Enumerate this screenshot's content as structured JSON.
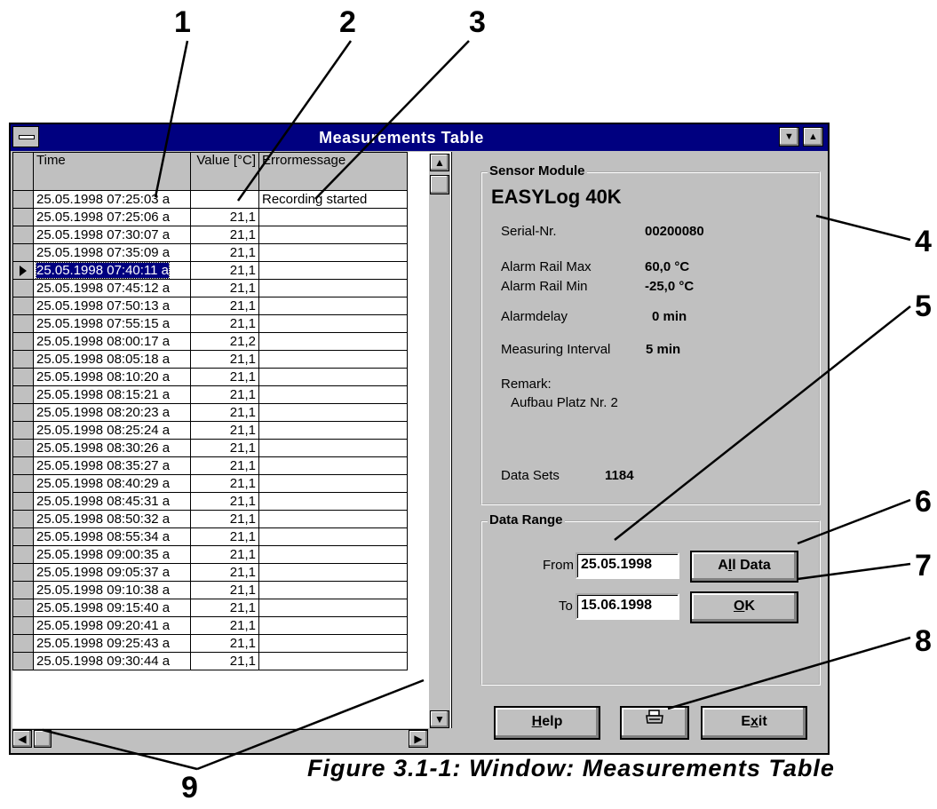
{
  "callouts": [
    "1",
    "2",
    "3",
    "4",
    "5",
    "6",
    "7",
    "8",
    "9"
  ],
  "caption": "Figure 3.1-1: Window: Measurements Table",
  "window": {
    "title": "Measurements Table"
  },
  "table": {
    "headers": {
      "time": "Time",
      "value": "Value [°C]",
      "error": "Errormessage"
    },
    "selected_row": 4,
    "rows": [
      {
        "time": "25.05.1998 07:25:03 a",
        "value": "",
        "error": "Recording started"
      },
      {
        "time": "25.05.1998 07:25:06 a",
        "value": "21,1",
        "error": ""
      },
      {
        "time": "25.05.1998 07:30:07 a",
        "value": "21,1",
        "error": ""
      },
      {
        "time": "25.05.1998 07:35:09 a",
        "value": "21,1",
        "error": ""
      },
      {
        "time": "25.05.1998 07:40:11 a",
        "value": "21,1",
        "error": ""
      },
      {
        "time": "25.05.1998 07:45:12 a",
        "value": "21,1",
        "error": ""
      },
      {
        "time": "25.05.1998 07:50:13 a",
        "value": "21,1",
        "error": ""
      },
      {
        "time": "25.05.1998 07:55:15 a",
        "value": "21,1",
        "error": ""
      },
      {
        "time": "25.05.1998 08:00:17 a",
        "value": "21,2",
        "error": ""
      },
      {
        "time": "25.05.1998 08:05:18 a",
        "value": "21,1",
        "error": ""
      },
      {
        "time": "25.05.1998 08:10:20 a",
        "value": "21,1",
        "error": ""
      },
      {
        "time": "25.05.1998 08:15:21 a",
        "value": "21,1",
        "error": ""
      },
      {
        "time": "25.05.1998 08:20:23 a",
        "value": "21,1",
        "error": ""
      },
      {
        "time": "25.05.1998 08:25:24 a",
        "value": "21,1",
        "error": ""
      },
      {
        "time": "25.05.1998 08:30:26 a",
        "value": "21,1",
        "error": ""
      },
      {
        "time": "25.05.1998 08:35:27 a",
        "value": "21,1",
        "error": ""
      },
      {
        "time": "25.05.1998 08:40:29 a",
        "value": "21,1",
        "error": ""
      },
      {
        "time": "25.05.1998 08:45:31 a",
        "value": "21,1",
        "error": ""
      },
      {
        "time": "25.05.1998 08:50:32 a",
        "value": "21,1",
        "error": ""
      },
      {
        "time": "25.05.1998 08:55:34 a",
        "value": "21,1",
        "error": ""
      },
      {
        "time": "25.05.1998 09:00:35 a",
        "value": "21,1",
        "error": ""
      },
      {
        "time": "25.05.1998 09:05:37 a",
        "value": "21,1",
        "error": ""
      },
      {
        "time": "25.05.1998 09:10:38 a",
        "value": "21,1",
        "error": ""
      },
      {
        "time": "25.05.1998 09:15:40 a",
        "value": "21,1",
        "error": ""
      },
      {
        "time": "25.05.1998 09:20:41 a",
        "value": "21,1",
        "error": ""
      },
      {
        "time": "25.05.1998 09:25:43 a",
        "value": "21,1",
        "error": ""
      },
      {
        "time": "25.05.1998 09:30:44 a",
        "value": "21,1",
        "error": ""
      }
    ]
  },
  "sensor": {
    "group_title": "Sensor Module",
    "name": "EASYLog 40K",
    "serial_label": "Serial-Nr.",
    "serial_value": "00200080",
    "alarm_max_label": "Alarm Rail Max",
    "alarm_max_value": "60,0 °C",
    "alarm_min_label": "Alarm Rail Min",
    "alarm_min_value": "-25,0 °C",
    "alarmdelay_label": "Alarmdelay",
    "alarmdelay_value": "0 min",
    "interval_label": "Measuring Interval",
    "interval_value": "5 min",
    "remark_label": "Remark:",
    "remark_value": "Aufbau Platz Nr. 2",
    "datasets_label": "Data Sets",
    "datasets_value": "1184"
  },
  "range": {
    "group_title": "Data Range",
    "from_label": "From",
    "from_value": "25.05.1998",
    "to_label": "To",
    "to_value": "15.06.1998",
    "all_data_label": "All Data",
    "all_data_mnemonic": "l",
    "ok_label": "OK",
    "ok_mnemonic": "O"
  },
  "footer": {
    "help_label": "Help",
    "help_mnemonic": "H",
    "exit_label": "Exit",
    "exit_mnemonic": "x",
    "print_icon": "printer-icon"
  }
}
